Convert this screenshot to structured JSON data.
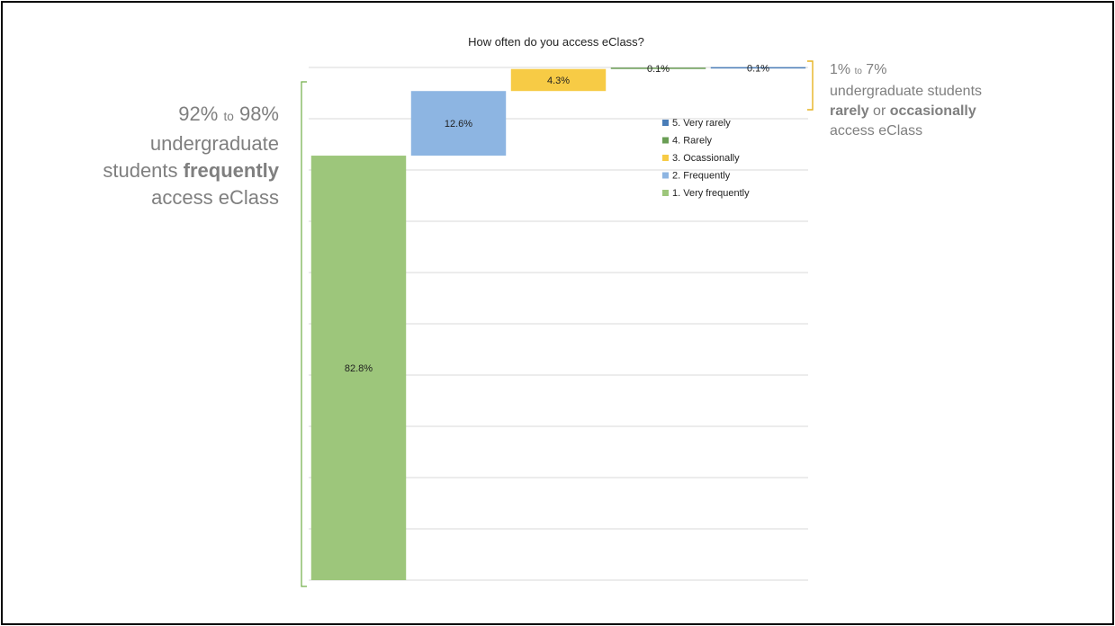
{
  "annotations": {
    "left": {
      "low": "92%",
      "to": "to",
      "high": "98%",
      "line2": "undergraduate",
      "line3_pre": "students ",
      "line3_bold": "frequently",
      "line4": "access eClass"
    },
    "right": {
      "low": "1%",
      "to": "to",
      "high": "7%",
      "line2": "undergraduate students",
      "line3_bold1": "rarely",
      "line3_mid": " or ",
      "line3_bold2": "occasionally",
      "line4": "access eClass"
    },
    "colors": {
      "text": "#7f7f7f",
      "left_bracket": "#70ad47",
      "right_bracket": "#e6b422"
    }
  },
  "chart_data": {
    "type": "bar",
    "subtype": "waterfall",
    "title": "How often do you access eClass?",
    "categories": [
      "1. Very frequently",
      "2. Frequently",
      "3. Ocassionally",
      "4. Rarely",
      "5. Very rarely"
    ],
    "values": [
      82.8,
      12.6,
      4.3,
      0.1,
      0.1
    ],
    "labels": [
      "82.8%",
      "12.6%",
      "4.3%",
      "0.1%",
      "0.1%"
    ],
    "colors": [
      "#9dc67b",
      "#8db5e2",
      "#f7cb45",
      "#6a9e55",
      "#4a7db8"
    ],
    "ylim": [
      0,
      100
    ],
    "grid": true,
    "legend": {
      "position": "top-right",
      "entries": [
        {
          "label": "5. Very rarely",
          "color": "#4a7db8"
        },
        {
          "label": "4. Rarely",
          "color": "#6a9e55"
        },
        {
          "label": "3. Ocassionally",
          "color": "#f7cb45"
        },
        {
          "label": "2. Frequently",
          "color": "#8db5e2"
        },
        {
          "label": "1. Very frequently",
          "color": "#9dc67b"
        }
      ]
    }
  }
}
